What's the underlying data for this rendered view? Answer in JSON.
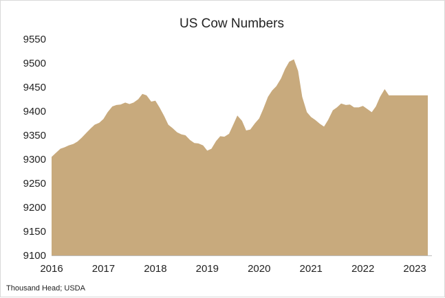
{
  "chart_data": {
    "type": "area",
    "title": "US Cow Numbers",
    "xlabel": "",
    "ylabel": "",
    "source": "Thousand Head; USDA",
    "fill_color": "#c8aa7d",
    "xlim": [
      2016,
      2023.33
    ],
    "ylim": [
      9100,
      9550
    ],
    "x_ticks": [
      2016,
      2017,
      2018,
      2019,
      2020,
      2021,
      2022,
      2023
    ],
    "y_ticks": [
      9100,
      9150,
      9200,
      9250,
      9300,
      9350,
      9400,
      9450,
      9500,
      9550
    ],
    "grid": false,
    "legend": "none",
    "series": [
      {
        "x": [
          2016.0,
          2016.08,
          2016.17,
          2016.25,
          2016.33,
          2016.42,
          2016.5,
          2016.58,
          2016.67,
          2016.75,
          2016.83,
          2016.92,
          2017.0,
          2017.08,
          2017.17,
          2017.25,
          2017.33,
          2017.42,
          2017.5,
          2017.58,
          2017.67,
          2017.75,
          2017.83,
          2017.92,
          2018.0,
          2018.08,
          2018.17,
          2018.25,
          2018.33,
          2018.42,
          2018.5,
          2018.58,
          2018.67,
          2018.75,
          2018.83,
          2018.92,
          2019.0,
          2019.08,
          2019.17,
          2019.25,
          2019.33,
          2019.42,
          2019.5,
          2019.58,
          2019.67,
          2019.75,
          2019.83,
          2019.92,
          2020.0,
          2020.08,
          2020.17,
          2020.25,
          2020.33,
          2020.42,
          2020.5,
          2020.58,
          2020.67,
          2020.75,
          2020.83,
          2020.92,
          2021.0,
          2021.08,
          2021.17,
          2021.25,
          2021.33,
          2021.42,
          2021.5,
          2021.58,
          2021.67,
          2021.75,
          2021.83,
          2021.92,
          2022.0,
          2022.08,
          2022.17,
          2022.25,
          2022.33,
          2022.42,
          2022.5,
          2022.58,
          2022.67,
          2022.75,
          2022.83,
          2022.92,
          2023.0,
          2023.08,
          2023.17,
          2023.25
        ],
        "values": [
          9305,
          9313,
          9322,
          9325,
          9329,
          9332,
          9337,
          9345,
          9355,
          9364,
          9372,
          9376,
          9384,
          9398,
          9410,
          9413,
          9414,
          9418,
          9415,
          9418,
          9425,
          9436,
          9433,
          9420,
          9422,
          9408,
          9390,
          9372,
          9365,
          9356,
          9352,
          9350,
          9340,
          9334,
          9333,
          9329,
          9318,
          9322,
          9338,
          9348,
          9347,
          9353,
          9372,
          9391,
          9380,
          9360,
          9362,
          9375,
          9385,
          9405,
          9430,
          9443,
          9452,
          9468,
          9488,
          9503,
          9508,
          9484,
          9430,
          9398,
          9388,
          9382,
          9374,
          9368,
          9382,
          9402,
          9408,
          9416,
          9413,
          9414,
          9408,
          9408,
          9411,
          9405,
          9398,
          9410,
          9430,
          9446,
          9433,
          9433,
          9433,
          9433,
          9433,
          9433,
          9433,
          9433,
          9433,
          9433
        ]
      }
    ]
  }
}
